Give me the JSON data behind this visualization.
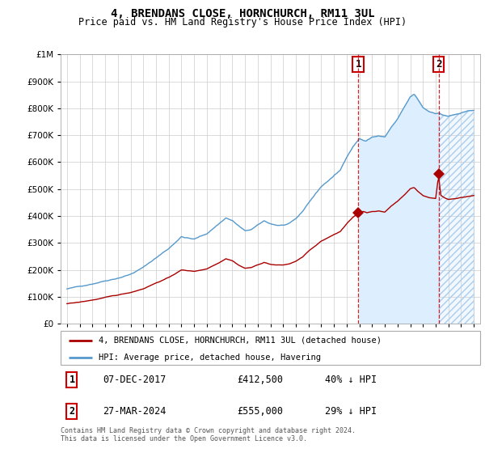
{
  "title": "4, BRENDANS CLOSE, HORNCHURCH, RM11 3UL",
  "subtitle": "Price paid vs. HM Land Registry's House Price Index (HPI)",
  "legend_line1": "4, BRENDANS CLOSE, HORNCHURCH, RM11 3UL (detached house)",
  "legend_line2": "HPI: Average price, detached house, Havering",
  "transaction1_date": "07-DEC-2017",
  "transaction1_price": 412500,
  "transaction1_label": "£412,500",
  "transaction1_hpi_text": "40% ↓ HPI",
  "transaction2_date": "27-MAR-2024",
  "transaction2_price": 555000,
  "transaction2_label": "£555,000",
  "transaction2_hpi_text": "29% ↓ HPI",
  "footer": "Contains HM Land Registry data © Crown copyright and database right 2024.\nThis data is licensed under the Open Government Licence v3.0.",
  "hpi_color": "#5599cc",
  "hpi_fill_color": "#ddeeff",
  "hpi_hatch_color": "#aaccee",
  "price_color": "#aa0000",
  "vline_color": "#cc0000",
  "background_color": "#ffffff",
  "grid_color": "#cccccc",
  "ylim": [
    0,
    1000000
  ],
  "xlim_start": 1994.5,
  "xlim_end": 2027.5,
  "transaction1_year": 2017.92,
  "transaction2_year": 2024.23,
  "title_fontsize": 10,
  "subtitle_fontsize": 8.5
}
